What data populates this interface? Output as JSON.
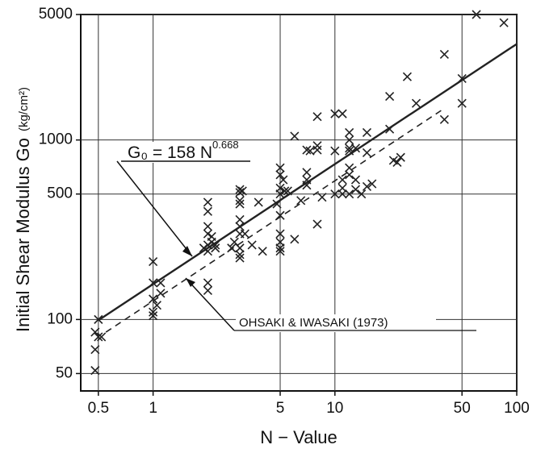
{
  "chart_data": {
    "type": "scatter",
    "x_label": "N − Value",
    "y_label": "Initial  Shear  Modulus  Go",
    "y_unit": "(kg/cm²)",
    "log_x": true,
    "log_y": true,
    "grid": true,
    "color": "#222222",
    "xlim": [
      0.4,
      100
    ],
    "ylim": [
      40,
      5000
    ],
    "xticks": [
      0.5,
      1,
      5,
      10,
      50,
      100
    ],
    "yticks": [
      50,
      100,
      500,
      1000,
      5000
    ],
    "x": [
      0.5,
      0.48,
      0.5,
      0.52,
      0.48,
      0.48,
      1,
      1,
      1.1,
      1,
      1.1,
      1.05,
      1,
      1,
      2,
      2,
      2,
      2,
      2.1,
      2.1,
      2,
      1.9,
      2.2,
      2,
      2,
      2,
      2.2,
      3,
      3.1,
      3,
      3,
      3,
      3,
      3,
      3,
      3.2,
      2.8,
      3,
      3,
      3,
      2.7,
      3.5,
      3.8,
      4,
      5,
      5,
      5.2,
      5,
      5.3,
      5,
      4.8,
      5,
      5,
      5,
      5,
      5,
      6,
      5.5,
      6,
      7,
      7.3,
      8,
      8,
      8,
      7,
      7,
      7,
      6.5,
      8,
      8.5,
      10,
      11,
      10,
      11,
      12,
      12,
      12,
      12,
      12,
      12,
      11,
      11,
      10,
      12,
      13,
      13,
      14,
      15,
      15,
      15,
      16,
      13,
      20,
      20,
      21,
      22,
      23,
      25,
      28,
      40,
      40,
      50,
      50,
      60,
      85
    ],
    "y": [
      100,
      85,
      80,
      80,
      68,
      52,
      210,
      160,
      160,
      130,
      140,
      120,
      110,
      105,
      450,
      400,
      330,
      300,
      290,
      270,
      260,
      250,
      260,
      240,
      160,
      145,
      250,
      530,
      520,
      510,
      460,
      440,
      360,
      330,
      300,
      300,
      270,
      250,
      230,
      220,
      250,
      260,
      450,
      240,
      700,
      640,
      600,
      540,
      520,
      500,
      440,
      380,
      300,
      270,
      250,
      240,
      280,
      520,
      1050,
      880,
      870,
      880,
      930,
      1350,
      600,
      660,
      560,
      460,
      340,
      480,
      1400,
      1400,
      870,
      600,
      1100,
      1000,
      870,
      900,
      700,
      640,
      540,
      500,
      500,
      500,
      600,
      530,
      500,
      1100,
      850,
      550,
      570,
      900,
      1750,
      1150,
      770,
      750,
      800,
      2250,
      1600,
      3000,
      1300,
      2200,
      1600,
      5000,
      4500
    ],
    "lines": [
      {
        "x": [
          0.5,
          100
        ],
        "y": [
          99,
          3425
        ],
        "dashed": false
      },
      {
        "x": [
          0.55,
          40
        ],
        "y": [
          85,
          1500
        ],
        "dashed": true
      }
    ],
    "annotations": [
      {
        "text": "G₀ = 158 N",
        "sup": "0.668"
      },
      {
        "text": "OHSAKI & IWASAKI (1973)"
      }
    ]
  }
}
